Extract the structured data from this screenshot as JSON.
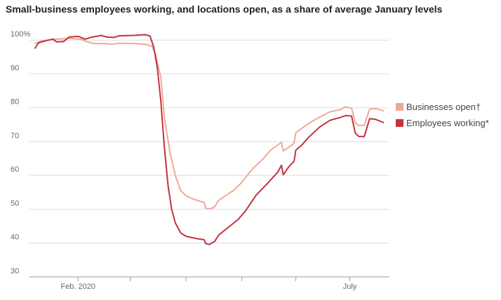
{
  "chart_data": {
    "type": "line",
    "title": "Small-business employees working, and locations open, as a share of average January levels",
    "xlim": [
      -27,
      173
    ],
    "xticks": [
      {
        "value": 0,
        "label": "Feb. 2020"
      },
      {
        "value": 151,
        "label": "July"
      }
    ],
    "xminorticks": [
      29,
      60,
      91,
      121
    ],
    "ylim": [
      30,
      101.5
    ],
    "yticks": [
      30,
      40,
      50,
      60,
      70,
      80,
      90,
      {
        "value": 100,
        "label": "100%"
      }
    ],
    "grid": true,
    "legend": "right",
    "series": [
      {
        "name": "Businesses open†",
        "color": "#efa999",
        "x": [
          -24,
          -20,
          -12,
          -4,
          2,
          5,
          9,
          15,
          19,
          23,
          31,
          37,
          41,
          43,
          46,
          48,
          51,
          54,
          57,
          60,
          64,
          70,
          71,
          74,
          76,
          78,
          82,
          87,
          91,
          97,
          103,
          107,
          113,
          114,
          117,
          120,
          121,
          124,
          128,
          134,
          140,
          146,
          148,
          152,
          154,
          156,
          159,
          162,
          165,
          170
        ],
        "values": [
          99,
          99.8,
          100.3,
          100.5,
          100.2,
          99.5,
          99,
          99,
          98.8,
          99.1,
          99,
          98.8,
          98.2,
          96,
          89,
          77,
          67,
          60,
          55.5,
          54,
          53,
          52,
          50.2,
          50.2,
          50.8,
          52.6,
          54,
          55.8,
          58,
          62,
          65,
          67.5,
          69.8,
          67.2,
          68.3,
          69.5,
          72.6,
          73.8,
          75.3,
          77.2,
          78.8,
          79.5,
          80.2,
          79.9,
          75.5,
          74.7,
          74.8,
          79.6,
          79.8,
          79.1
        ]
      },
      {
        "name": "Employees working*",
        "color": "#c1333d",
        "x": [
          -24,
          -22,
          -18,
          -14,
          -12,
          -8,
          -5,
          0,
          4,
          7,
          13,
          16,
          20,
          23,
          31,
          37,
          40,
          42,
          44,
          46,
          48,
          50,
          52,
          54,
          57,
          60,
          66,
          70,
          71,
          73,
          76,
          78,
          82,
          89,
          93,
          99,
          105,
          111,
          113,
          114,
          117,
          120,
          121,
          124,
          128,
          134,
          140,
          146,
          149,
          152,
          154,
          156,
          159,
          162,
          165,
          170
        ],
        "values": [
          97.5,
          99.2,
          99.8,
          100.3,
          99.5,
          99.6,
          100.9,
          101.1,
          100.3,
          100.8,
          101.4,
          100.9,
          100.8,
          101.3,
          101.4,
          101.6,
          101.2,
          98,
          92,
          82,
          68,
          57,
          50,
          46,
          43,
          42,
          41.3,
          41,
          39.8,
          39.6,
          40.5,
          42.3,
          44,
          47,
          49.5,
          54.2,
          57.5,
          61,
          63,
          60.2,
          62.5,
          64.2,
          67.5,
          68.8,
          71.2,
          74.2,
          76.3,
          77.2,
          77.7,
          77.5,
          72.5,
          71.5,
          71.5,
          76.8,
          76.6,
          75.6
        ]
      }
    ]
  }
}
